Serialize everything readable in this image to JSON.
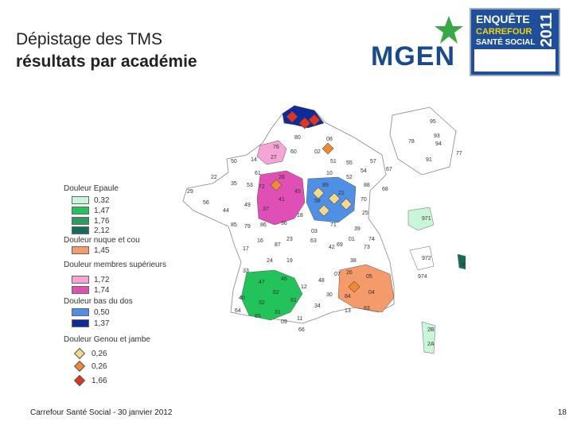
{
  "slide": {
    "title_line1": "Dépistage des TMS",
    "title_line2": "résultats par académie",
    "footer": "Carrefour Santé Social - 30 janvier 2012",
    "page_number": "18"
  },
  "logo": {
    "text": "MGEN",
    "star_color": "#3aa845"
  },
  "badge": {
    "line1": "ENQUÊTE",
    "line2": "CARREFOUR",
    "line3": "SANTÉ SOCIAL",
    "year": "2011"
  },
  "legend": [
    {
      "title": "Douleur Epaule",
      "items": [
        {
          "label": "0,32",
          "color": "#c9f5d9"
        },
        {
          "label": "1,47",
          "color": "#22c35a"
        },
        {
          "label": "1,76",
          "color": "#2f9c5f"
        },
        {
          "label": "2,12",
          "color": "#176b5a"
        }
      ]
    },
    {
      "title": "Douleur nuque et cou",
      "items": [
        {
          "label": "1,45",
          "color": "#f59a6a"
        }
      ]
    },
    {
      "title": "Douleur membres supérieurs",
      "items": [
        {
          "label": "1,72",
          "color": "#f6a3d6"
        },
        {
          "label": "1,74",
          "color": "#e04fb5"
        }
      ]
    },
    {
      "title": "Douleur bas du dos",
      "items": [
        {
          "label": "0,50",
          "color": "#4f8fe6"
        },
        {
          "label": "1,37",
          "color": "#0f2a9a"
        }
      ]
    },
    {
      "title": "Douleur Genou et jambe",
      "items": [
        {
          "label": "0,26",
          "color": "#f3d98a",
          "shape": "diamond"
        },
        {
          "label": "0,26",
          "color": "#ee8a33",
          "shape": "diamond"
        },
        {
          "label": "1,66",
          "color": "#e23222",
          "shape": "diamond"
        }
      ]
    }
  ],
  "map_labels": {
    "depts": [
      "95",
      "78",
      "93",
      "94",
      "77",
      "91",
      "80",
      "76",
      "60",
      "02",
      "27",
      "14",
      "50",
      "61",
      "28",
      "45",
      "41",
      "37",
      "36",
      "18",
      "58",
      "89",
      "21",
      "70",
      "25",
      "39",
      "01",
      "73",
      "74",
      "69",
      "42",
      "63",
      "03",
      "19",
      "87",
      "23",
      "24",
      "33",
      "47",
      "40",
      "64",
      "65",
      "32",
      "31",
      "82",
      "46",
      "12",
      "81",
      "11",
      "09",
      "66",
      "30",
      "34",
      "48",
      "07",
      "26",
      "84",
      "13",
      "83",
      "04",
      "05",
      "38",
      "71",
      "51",
      "55",
      "10",
      "52",
      "88",
      "54",
      "57",
      "67",
      "68",
      "08",
      "35",
      "22",
      "29",
      "56",
      "44",
      "53",
      "72",
      "49",
      "85",
      "79",
      "86",
      "16",
      "17",
      "971",
      "972",
      "973",
      "974",
      "2B",
      "2A"
    ]
  }
}
